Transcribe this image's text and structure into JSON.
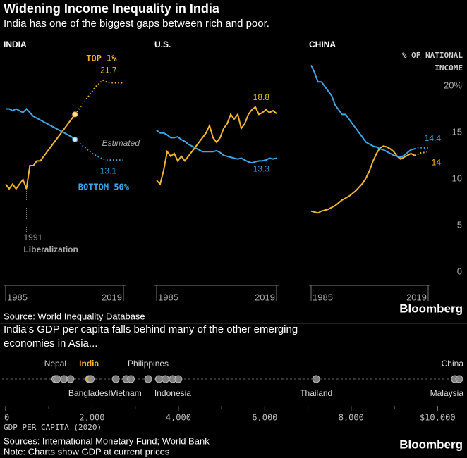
{
  "header": {
    "title": "Widening Income Inequality in India",
    "subtitle": "India has one of the biggest gaps between rich and poor."
  },
  "source": "Source: World Inequality Database",
  "logo": "Bloomberg",
  "chart_data": [
    {
      "type": "line",
      "title": "INDIA",
      "xlim": [
        1985,
        2019
      ],
      "xticks": [
        1985,
        2019
      ],
      "ylim": [
        0,
        24
      ],
      "x": [
        1985,
        1986,
        1987,
        1988,
        1989,
        1990,
        1991,
        1992,
        1993,
        1994,
        1995,
        1996,
        1997,
        1998,
        1999,
        2000,
        2001,
        2002,
        2003,
        2004,
        2005,
        2006,
        2007,
        2008,
        2009,
        2010,
        2011,
        2012,
        2013,
        2014,
        2015,
        2016,
        2017,
        2018,
        2019
      ],
      "series": [
        {
          "name": "TOP 1%",
          "color": "#f2b632",
          "label_at": "max",
          "label_side": "above",
          "estimated_from": 2005,
          "estimate_marker": true,
          "values": [
            10.5,
            10,
            10.5,
            10,
            10.5,
            11,
            10,
            12.5,
            12.5,
            13,
            13,
            13.5,
            14,
            14.5,
            15,
            15.5,
            16,
            16.5,
            17,
            17.5,
            18,
            18.5,
            19,
            19.5,
            20,
            20.5,
            21,
            21.3,
            21.7,
            21.5,
            21.4,
            21.4,
            21.4,
            21.4,
            21.4
          ]
        },
        {
          "name": "BOTTOM 50%",
          "color": "#3ea6e0",
          "label_at": "end",
          "label_side": "below",
          "estimated_from": 2005,
          "estimate_marker": true,
          "values": [
            18.6,
            18.6,
            18.4,
            18.6,
            18.4,
            18.2,
            18.6,
            18.2,
            17.8,
            17.6,
            17.4,
            17.2,
            17,
            16.8,
            16.6,
            16.4,
            16.2,
            16,
            15.8,
            15.6,
            15.3,
            15,
            14.7,
            14.4,
            14.1,
            13.8,
            13.6,
            13.4,
            13.2,
            13.1,
            13.1,
            13.1,
            13.1,
            13.1,
            13.1
          ]
        }
      ],
      "annotation": "Estimated",
      "vline": {
        "x": 1991,
        "label": "Liberalization"
      }
    },
    {
      "type": "line",
      "title": "U.S.",
      "xlim": [
        1985,
        2019
      ],
      "xticks": [
        1985,
        2019
      ],
      "ylim": [
        0,
        24
      ],
      "x": [
        1985,
        1986,
        1987,
        1988,
        1989,
        1990,
        1991,
        1992,
        1993,
        1994,
        1995,
        1996,
        1997,
        1998,
        1999,
        2000,
        2001,
        2002,
        2003,
        2004,
        2005,
        2006,
        2007,
        2008,
        2009,
        2010,
        2011,
        2012,
        2013,
        2014,
        2015,
        2016,
        2017,
        2018,
        2019
      ],
      "series": [
        {
          "color": "#f2b632",
          "label_at": "max",
          "label_side": "above",
          "values": [
            10.9,
            10.5,
            12,
            14,
            13.5,
            13.8,
            13,
            13.5,
            13,
            13.5,
            14,
            14.5,
            15,
            15.5,
            16,
            16.8,
            15.5,
            15,
            15.5,
            16.5,
            17,
            18,
            17.5,
            18,
            16.5,
            17,
            18,
            18.5,
            18.8,
            18,
            18.2,
            18.5,
            18.2,
            18.4,
            18.1
          ]
        },
        {
          "color": "#3ea6e0",
          "label_at": "end",
          "label_side": "below",
          "values": [
            16.3,
            16,
            16,
            15.8,
            15.5,
            15.5,
            15.6,
            15.3,
            15.1,
            14.8,
            14.6,
            14.4,
            14.2,
            14,
            14,
            14,
            14,
            14.1,
            13.9,
            13.6,
            13.5,
            13.4,
            13.3,
            13.2,
            13.3,
            13.1,
            12.9,
            12.8,
            12.9,
            13,
            13,
            13.1,
            13.3,
            13.2,
            13.3
          ]
        }
      ]
    },
    {
      "type": "line",
      "title": "CHINA",
      "xlim": [
        1985,
        2019
      ],
      "xticks": [
        1985,
        2019
      ],
      "ylim": [
        0,
        24
      ],
      "yticks": [
        0,
        5,
        10,
        15,
        {
          "value": 20,
          "label": "20%"
        }
      ],
      "ylabel": "% OF NATIONAL INCOME",
      "x": [
        1985,
        1986,
        1987,
        1988,
        1989,
        1990,
        1991,
        1992,
        1993,
        1994,
        1995,
        1996,
        1997,
        1998,
        1999,
        2000,
        2001,
        2002,
        2003,
        2004,
        2005,
        2006,
        2007,
        2008,
        2009,
        2010,
        2011,
        2012,
        2013,
        2014,
        2015,
        2016,
        2017,
        2018,
        2019
      ],
      "series": [
        {
          "color": "#f2b632",
          "label_at": "end",
          "label_side": "below",
          "estimated_from": 2015,
          "values": [
            7.6,
            7.5,
            7.4,
            7.6,
            7.7,
            7.8,
            8,
            8.2,
            8.5,
            8.8,
            9,
            9.2,
            9.5,
            9.8,
            10.2,
            10.6,
            11.2,
            12,
            13,
            13.8,
            14.4,
            14.6,
            14.5,
            14.3,
            14,
            13.5,
            13.2,
            13.4,
            13.6,
            13.8,
            13.6,
            13.7,
            13.9,
            13.9,
            14
          ]
        },
        {
          "color": "#3ea6e0",
          "label_at": "end",
          "label_side": "above",
          "estimated_from": 2015,
          "values": [
            23.3,
            22.5,
            21.5,
            21.5,
            21,
            20.5,
            20,
            19,
            18.5,
            18,
            18,
            17.5,
            17,
            16.5,
            16,
            15.5,
            15,
            14.8,
            14.6,
            14.5,
            14.3,
            14.2,
            14,
            13.8,
            13.6,
            13.5,
            13.4,
            13.6,
            13.9,
            14.2,
            14.3,
            14.4,
            14.4,
            14.4,
            14.4
          ]
        }
      ]
    },
    {
      "type": "strip",
      "title": "India’s GDP per capita falls behind many of the other emerging economies in Asia...",
      "xlabel": "GDP PER CAPITA (2020)",
      "xlim": [
        0,
        10600
      ],
      "xticks": [
        0,
        {
          "value": 2000,
          "label": "2,000"
        },
        {
          "value": 4000,
          "label": "4,000"
        },
        {
          "value": 6000,
          "label": "6,000"
        },
        {
          "value": 8000,
          "label": "8,000"
        },
        {
          "value": 10000,
          "label": "$10,000"
        }
      ],
      "minor_xticks": [
        1000,
        3000,
        5000,
        7000,
        9000
      ],
      "categories": [
        "Nepal",
        null,
        null,
        null,
        "India",
        "Bangladesh",
        null,
        "Vietnam",
        null,
        "Philippines",
        null,
        null,
        "Indonesia",
        null,
        "Thailand",
        "Malaysia",
        "China"
      ],
      "values": [
        1150,
        1190,
        1350,
        1500,
        1930,
        1970,
        2550,
        2790,
        2900,
        3300,
        3550,
        3700,
        3870,
        4000,
        7190,
        10400,
        10500
      ],
      "colors": [
        "#8a8a8a",
        "#8a8a8a",
        "#8a8a8a",
        "#8a8a8a",
        "#f2b632",
        "#8a8a8a",
        "#8a8a8a",
        "#8a8a8a",
        "#8a8a8a",
        "#8a8a8a",
        "#8a8a8a",
        "#8a8a8a",
        "#8a8a8a",
        "#8a8a8a",
        "#8a8a8a",
        "#8a8a8a",
        "#8a8a8a"
      ],
      "label_positions": [
        "above",
        null,
        null,
        null,
        "above",
        "below",
        null,
        "below",
        null,
        "above",
        null,
        null,
        "below",
        null,
        "below",
        "below",
        "above"
      ],
      "source": "Sources: International Monetary Fund; World Bank",
      "note": "Note: Charts show GDP at current prices"
    }
  ]
}
